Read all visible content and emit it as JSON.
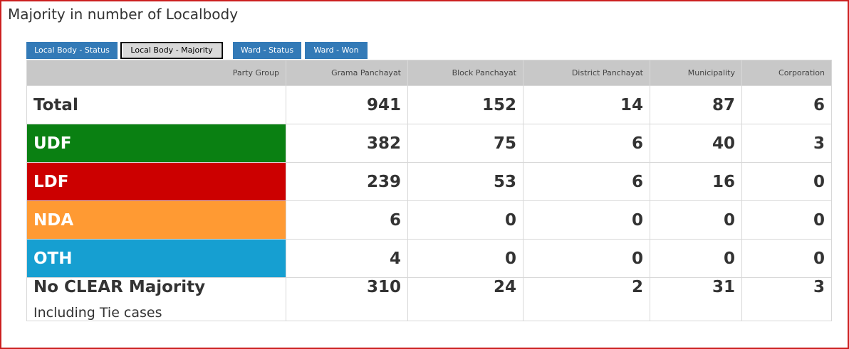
{
  "page": {
    "title": "Majority in number of Localbody"
  },
  "tabs": [
    {
      "label": "Local Body - Status",
      "active": false
    },
    {
      "label": "Local Body - Majority",
      "active": true
    },
    {
      "label": "Ward - Status",
      "active": false
    },
    {
      "label": "Ward - Won",
      "active": false
    }
  ],
  "table": {
    "headers": [
      "Party Group",
      "Grama Panchayat",
      "Block Panchayat",
      "District Panchayat",
      "Municipality",
      "Corporation"
    ],
    "rows": [
      {
        "party": "Total",
        "values": [
          "941",
          "152",
          "14",
          "87",
          "6"
        ],
        "color": ""
      },
      {
        "party": "UDF",
        "values": [
          "382",
          "75",
          "6",
          "40",
          "3"
        ],
        "color": "#0a8012"
      },
      {
        "party": "LDF",
        "values": [
          "239",
          "53",
          "6",
          "16",
          "0"
        ],
        "color": "#cc0000"
      },
      {
        "party": "NDA",
        "values": [
          "6",
          "0",
          "0",
          "0",
          "0"
        ],
        "color": "#ff9a33"
      },
      {
        "party": "OTH",
        "values": [
          "4",
          "0",
          "0",
          "0",
          "0"
        ],
        "color": "#169fd1"
      },
      {
        "party": "No CLEAR Majority",
        "subtitle": "Including Tie cases",
        "values": [
          "310",
          "24",
          "2",
          "31",
          "3"
        ],
        "color": ""
      }
    ]
  },
  "colors": {
    "frame_border": "#cc1f1f",
    "tab_blue": "#337ab7",
    "header_gray": "#c8c8c8"
  }
}
